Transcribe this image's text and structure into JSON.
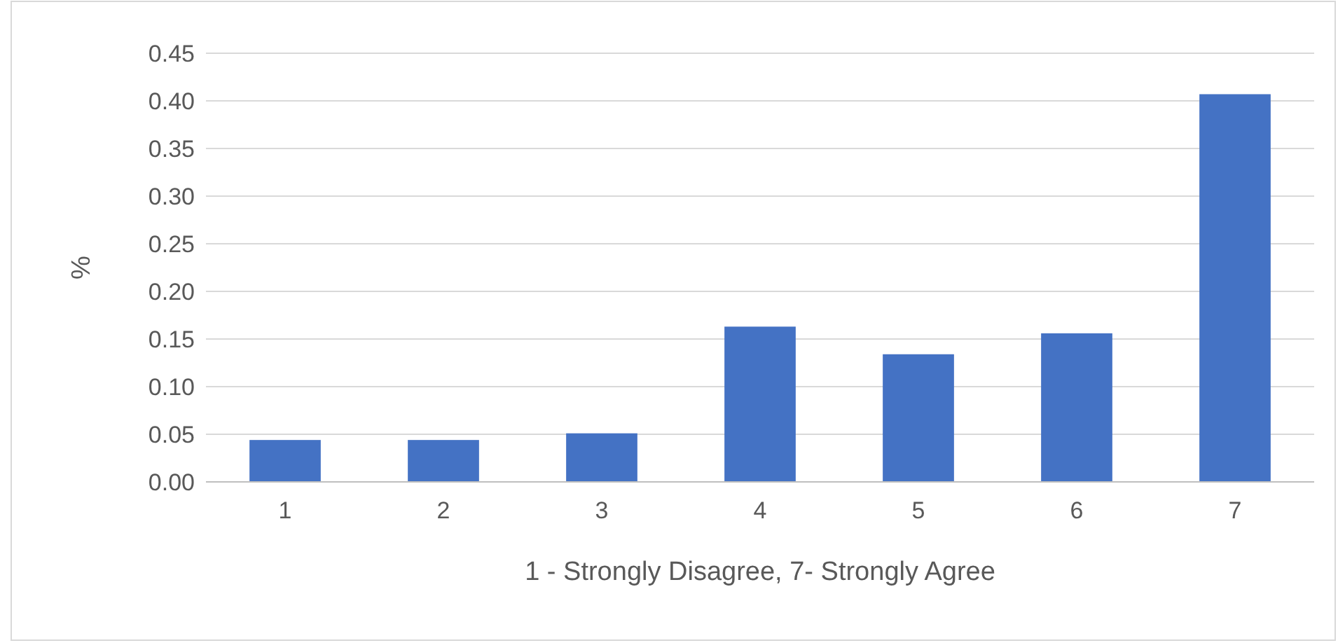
{
  "chart_data": {
    "type": "bar",
    "xlabel": "1 - Strongly Disagree, 7- Strongly Agree",
    "ylabel": "%",
    "categories": [
      "1",
      "2",
      "3",
      "4",
      "5",
      "6",
      "7"
    ],
    "values": [
      0.044,
      0.044,
      0.051,
      0.163,
      0.134,
      0.156,
      0.407
    ],
    "color": "#4472c4",
    "ylim": [
      0,
      0.45
    ],
    "yticks": [
      {
        "value": 0,
        "label": "0.00"
      },
      {
        "value": 0.05,
        "label": "0.05"
      },
      {
        "value": 0.1,
        "label": "0.10"
      },
      {
        "value": 0.15,
        "label": "0.15"
      },
      {
        "value": 0.2,
        "label": "0.20"
      },
      {
        "value": 0.25,
        "label": "0.25"
      },
      {
        "value": 0.3,
        "label": "0.30"
      },
      {
        "value": 0.35,
        "label": "0.35"
      },
      {
        "value": 0.4,
        "label": "0.40"
      },
      {
        "value": 0.45,
        "label": "0.45"
      }
    ],
    "grid": "y"
  }
}
